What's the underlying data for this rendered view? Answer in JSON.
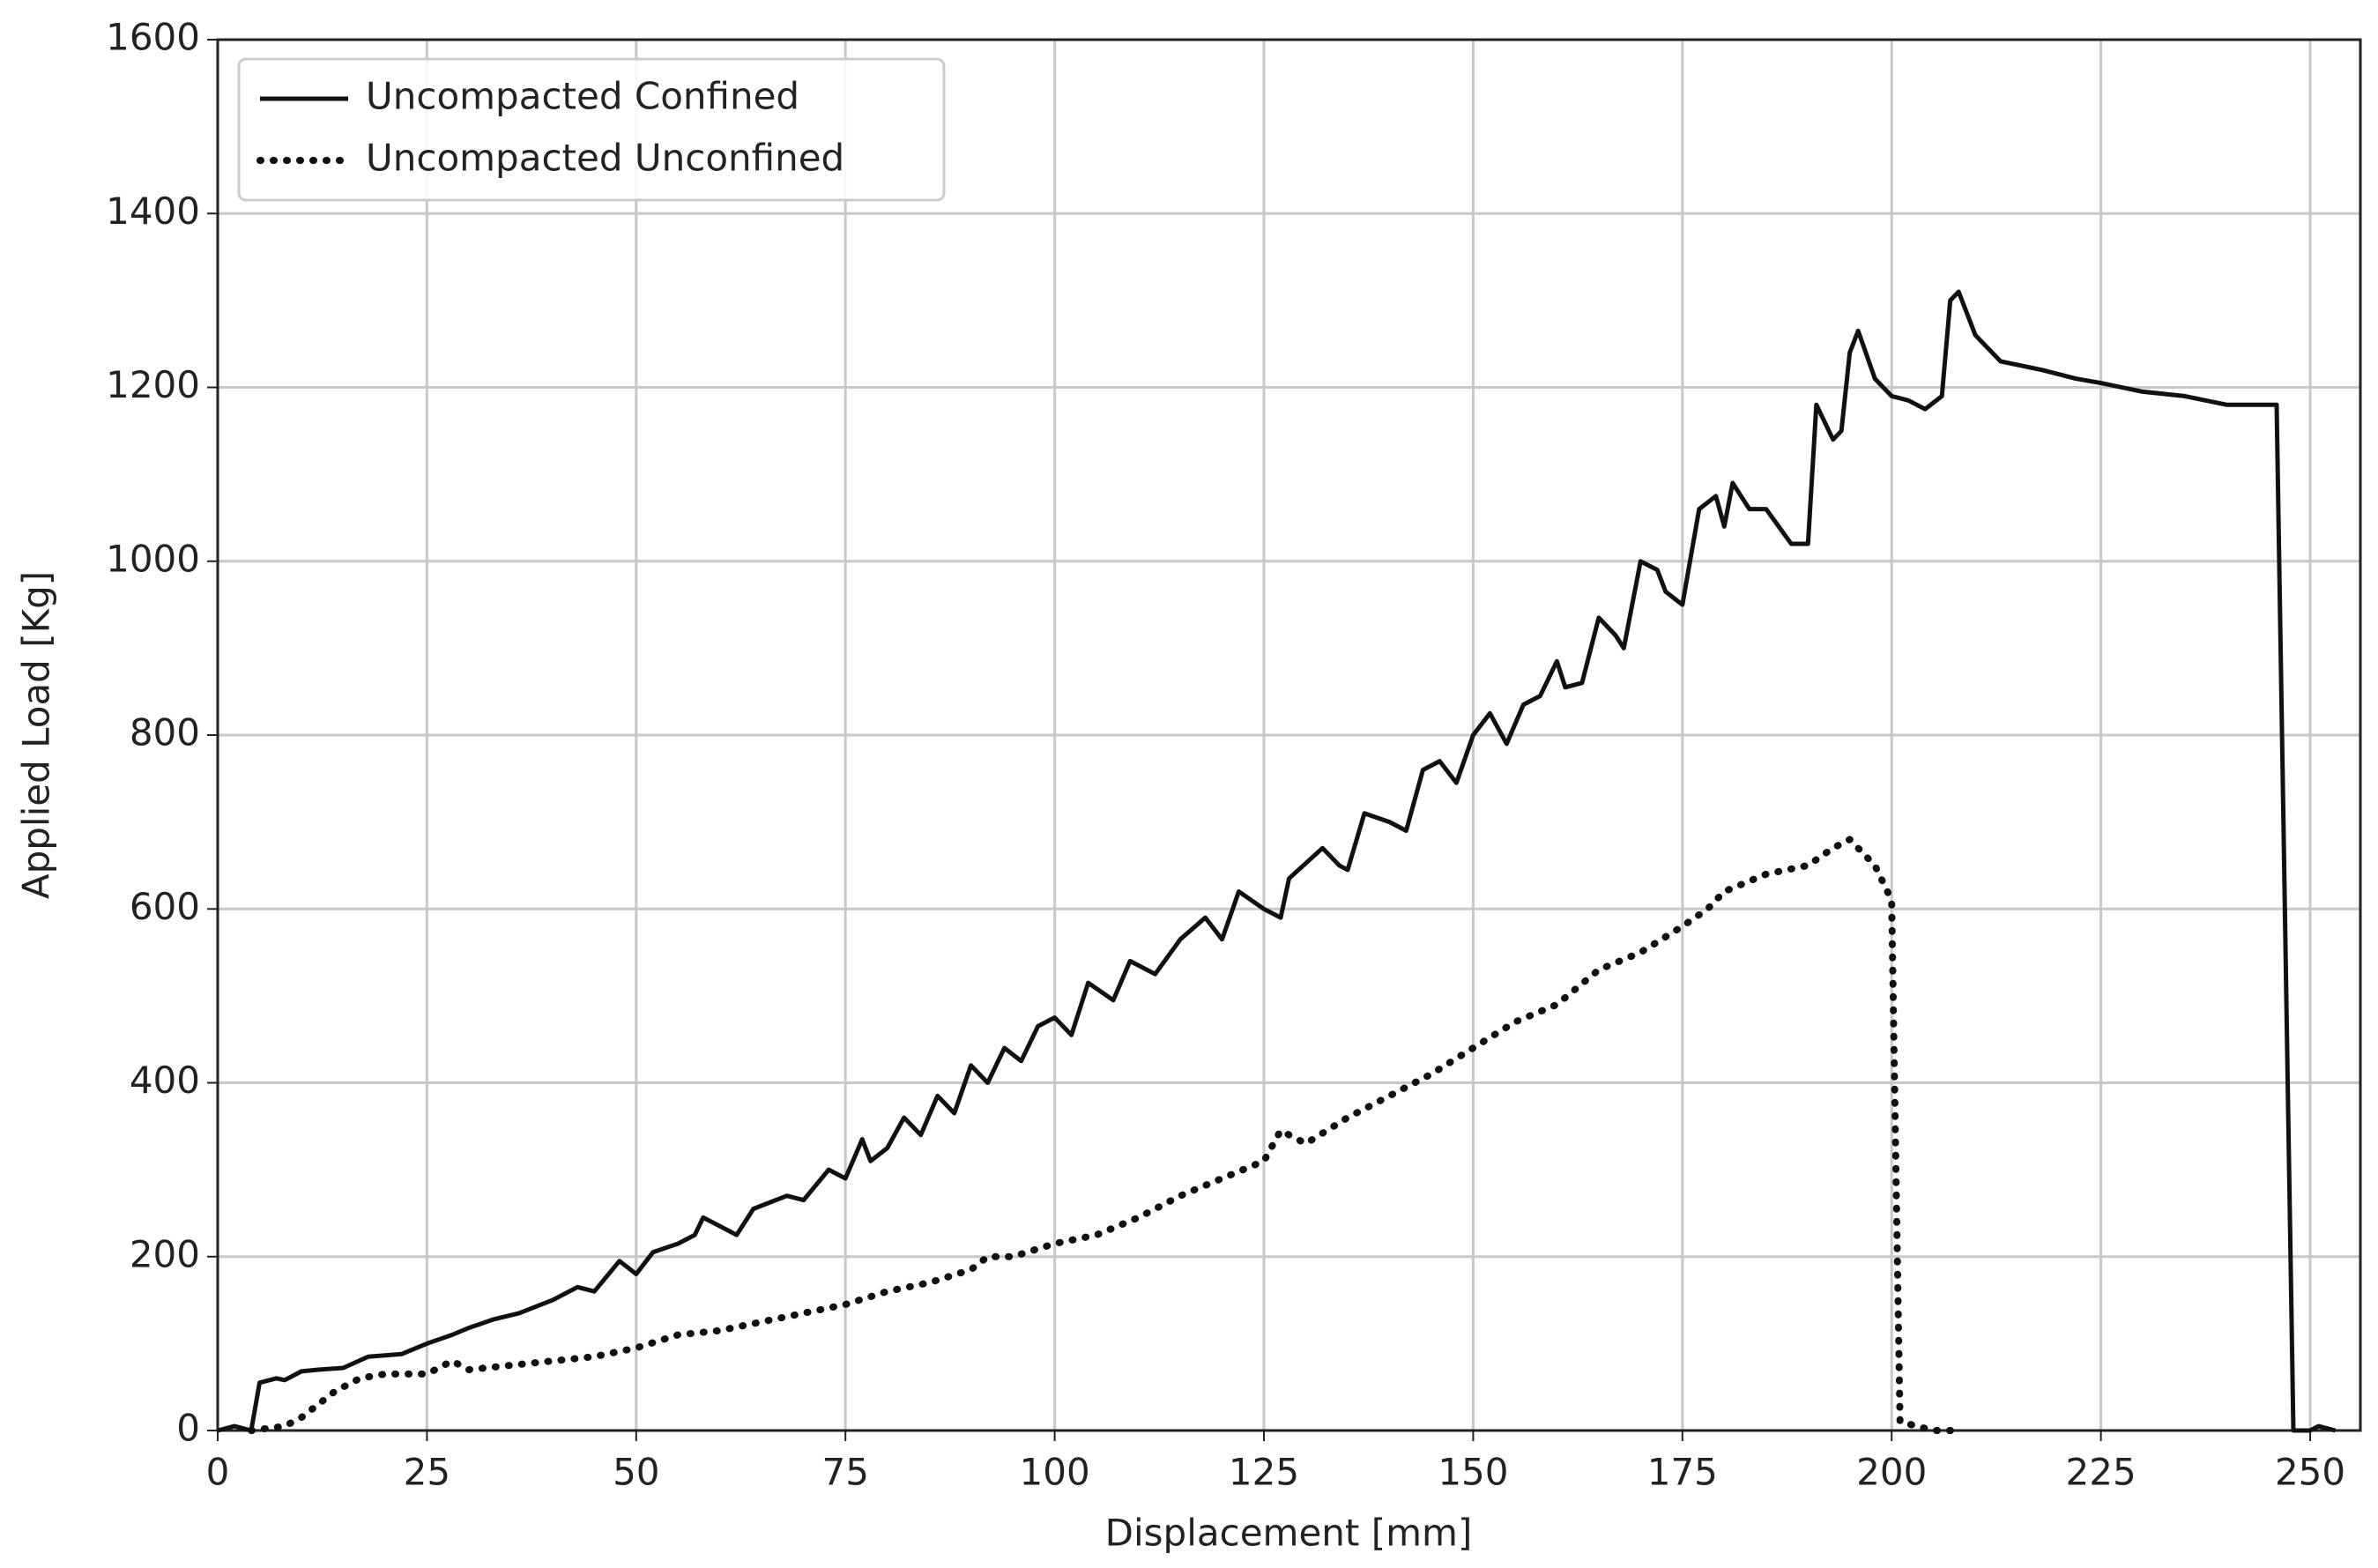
{
  "chart_data": {
    "type": "line",
    "xlabel": "Displacement [mm]",
    "ylabel": "Applied Load [Kg]",
    "xlim": [
      0,
      256
    ],
    "ylim": [
      0,
      1600
    ],
    "xticks": [
      0,
      25,
      50,
      75,
      100,
      125,
      150,
      175,
      200,
      225,
      250
    ],
    "yticks": [
      0,
      200,
      400,
      600,
      800,
      1000,
      1200,
      1400,
      1600
    ],
    "grid": true,
    "legend": "upper left",
    "series": [
      {
        "name": "Uncompacted Confined",
        "color": "#111111",
        "linestyle": "solid",
        "x": [
          0,
          2,
          4,
          5,
          7,
          8,
          10,
          12,
          15,
          18,
          22,
          25,
          28,
          30,
          33,
          36,
          40,
          43,
          45,
          48,
          50,
          52,
          55,
          57,
          58,
          60,
          62,
          64,
          68,
          70,
          73,
          75,
          77,
          78,
          80,
          82,
          84,
          86,
          88,
          90,
          92,
          94,
          96,
          98,
          100,
          102,
          104,
          107,
          109,
          112,
          115,
          118,
          120,
          122,
          125,
          127,
          128,
          132,
          134,
          135,
          137,
          140,
          142,
          144,
          146,
          148,
          150,
          152,
          154,
          156,
          158,
          160,
          161,
          163,
          165,
          167,
          168,
          170,
          172,
          173,
          175,
          177,
          179,
          180,
          181,
          183,
          185,
          188,
          190,
          191,
          193,
          194,
          195,
          196,
          198,
          200,
          202,
          204,
          206,
          207,
          208,
          210,
          213,
          218,
          222,
          225,
          230,
          235,
          240,
          245,
          246,
          248,
          250,
          251,
          253
        ],
        "values": [
          0,
          5,
          0,
          55,
          60,
          58,
          68,
          70,
          72,
          85,
          88,
          100,
          110,
          118,
          128,
          135,
          150,
          165,
          160,
          195,
          180,
          205,
          215,
          225,
          245,
          235,
          225,
          255,
          270,
          265,
          300,
          290,
          335,
          310,
          325,
          360,
          340,
          385,
          365,
          420,
          400,
          440,
          425,
          465,
          475,
          455,
          515,
          495,
          540,
          525,
          565,
          590,
          565,
          620,
          600,
          590,
          635,
          670,
          650,
          645,
          710,
          700,
          690,
          760,
          770,
          745,
          800,
          825,
          790,
          835,
          845,
          885,
          855,
          860,
          935,
          915,
          900,
          1000,
          990,
          965,
          950,
          1060,
          1075,
          1040,
          1090,
          1060,
          1060,
          1020,
          1020,
          1180,
          1140,
          1150,
          1240,
          1265,
          1210,
          1190,
          1185,
          1175,
          1190,
          1300,
          1310,
          1260,
          1230,
          1220,
          1210,
          1205,
          1195,
          1190,
          1180,
          1180,
          1180,
          0,
          0,
          5,
          0
        ]
      },
      {
        "name": "Uncompacted Unconfined",
        "color": "#111111",
        "linestyle": "dotted",
        "x": [
          4,
          8,
          10,
          12,
          14,
          17,
          20,
          25,
          28,
          30,
          35,
          40,
          45,
          50,
          55,
          60,
          65,
          70,
          75,
          80,
          85,
          90,
          92,
          95,
          100,
          105,
          110,
          115,
          120,
          125,
          127,
          130,
          135,
          140,
          145,
          150,
          155,
          160,
          165,
          170,
          175,
          178,
          180,
          185,
          190,
          193,
          195,
          198,
          200,
          201,
          203,
          205,
          208
        ],
        "values": [
          0,
          5,
          15,
          30,
          45,
          60,
          65,
          65,
          80,
          70,
          75,
          80,
          85,
          95,
          110,
          115,
          125,
          135,
          145,
          160,
          170,
          185,
          200,
          200,
          215,
          225,
          245,
          270,
          290,
          310,
          345,
          330,
          360,
          385,
          410,
          440,
          470,
          490,
          530,
          550,
          580,
          600,
          620,
          640,
          650,
          670,
          680,
          650,
          610,
          10,
          5,
          0,
          0
        ]
      }
    ]
  }
}
